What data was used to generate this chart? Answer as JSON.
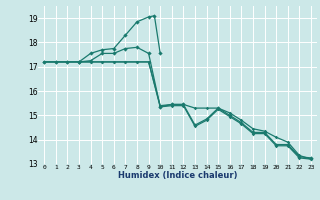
{
  "title": "",
  "xlabel": "Humidex (Indice chaleur)",
  "bg_color": "#cce8e8",
  "grid_color": "#ffffff",
  "line_color": "#1a7a6e",
  "xlim": [
    -0.5,
    23.5
  ],
  "ylim": [
    13.0,
    19.5
  ],
  "yticks": [
    13,
    14,
    15,
    16,
    17,
    18,
    19
  ],
  "xticks": [
    0,
    1,
    2,
    3,
    4,
    5,
    6,
    7,
    8,
    9,
    10,
    11,
    12,
    13,
    14,
    15,
    16,
    17,
    18,
    19,
    20,
    21,
    22,
    23
  ],
  "series_main": [
    [
      0,
      17.2
    ],
    [
      1,
      17.2
    ],
    [
      2,
      17.2
    ],
    [
      3,
      17.2
    ],
    [
      4,
      17.25
    ],
    [
      5,
      17.55
    ],
    [
      6,
      17.55
    ],
    [
      7,
      17.75
    ],
    [
      8,
      17.8
    ],
    [
      9,
      17.55
    ],
    [
      10,
      15.35
    ],
    [
      11,
      15.45
    ],
    [
      12,
      15.45
    ],
    [
      13,
      14.6
    ],
    [
      14,
      14.85
    ],
    [
      15,
      15.3
    ],
    [
      16,
      15.0
    ],
    [
      17,
      14.7
    ],
    [
      18,
      14.3
    ],
    [
      19,
      14.3
    ],
    [
      20,
      13.8
    ],
    [
      21,
      13.8
    ],
    [
      22,
      13.3
    ],
    [
      23,
      13.25
    ]
  ],
  "series_up": [
    [
      3,
      17.2
    ],
    [
      4,
      17.55
    ],
    [
      5,
      17.7
    ],
    [
      6,
      17.75
    ],
    [
      7,
      18.3
    ],
    [
      8,
      18.85
    ],
    [
      9,
      19.05
    ],
    [
      9.5,
      19.1
    ],
    [
      10,
      17.55
    ]
  ],
  "series_flat1": [
    [
      0,
      17.2
    ],
    [
      1,
      17.2
    ],
    [
      2,
      17.2
    ],
    [
      3,
      17.2
    ],
    [
      4,
      17.2
    ],
    [
      5,
      17.2
    ],
    [
      6,
      17.2
    ],
    [
      7,
      17.2
    ],
    [
      8,
      17.2
    ],
    [
      9,
      17.2
    ],
    [
      10,
      15.4
    ],
    [
      11,
      15.45
    ],
    [
      12,
      15.45
    ],
    [
      13,
      15.3
    ],
    [
      14,
      15.3
    ],
    [
      15,
      15.3
    ],
    [
      16,
      15.1
    ],
    [
      17,
      14.8
    ],
    [
      18,
      14.45
    ],
    [
      19,
      14.35
    ],
    [
      20,
      14.1
    ],
    [
      21,
      13.9
    ],
    [
      22,
      13.35
    ],
    [
      23,
      13.2
    ]
  ],
  "series_flat2": [
    [
      0,
      17.2
    ],
    [
      1,
      17.2
    ],
    [
      2,
      17.2
    ],
    [
      3,
      17.2
    ],
    [
      4,
      17.2
    ],
    [
      5,
      17.2
    ],
    [
      6,
      17.2
    ],
    [
      7,
      17.2
    ],
    [
      8,
      17.2
    ],
    [
      9,
      17.2
    ],
    [
      10,
      15.35
    ],
    [
      11,
      15.4
    ],
    [
      12,
      15.4
    ],
    [
      13,
      14.55
    ],
    [
      14,
      14.8
    ],
    [
      15,
      15.25
    ],
    [
      16,
      14.95
    ],
    [
      17,
      14.65
    ],
    [
      18,
      14.25
    ],
    [
      19,
      14.25
    ],
    [
      20,
      13.75
    ],
    [
      21,
      13.75
    ],
    [
      22,
      13.25
    ],
    [
      23,
      13.2
    ]
  ]
}
